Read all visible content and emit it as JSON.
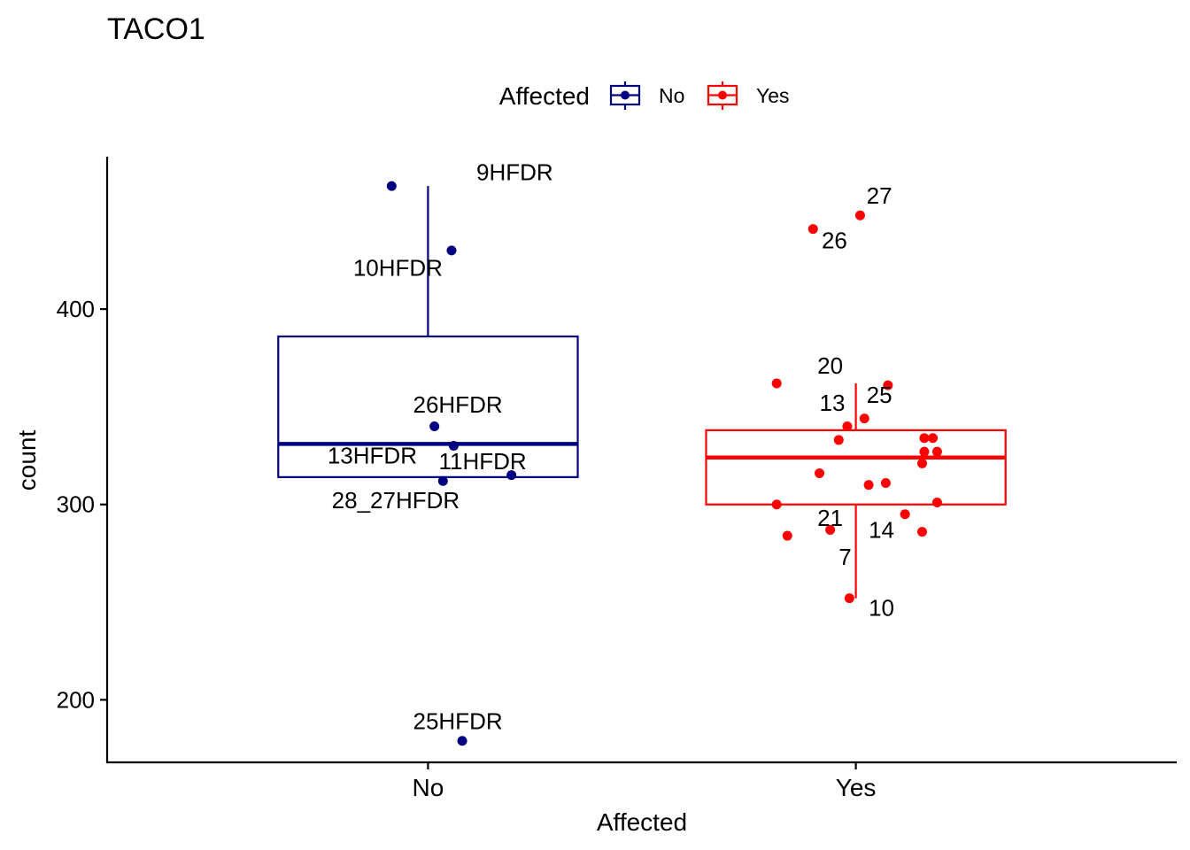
{
  "chart_data": {
    "type": "boxplot",
    "title": "TACO1",
    "xlabel": "Affected",
    "ylabel": "count",
    "ylim": [
      168,
      478
    ],
    "yticks": [
      200,
      300,
      400
    ],
    "categories": [
      "No",
      "Yes"
    ],
    "legend": {
      "title": "Affected",
      "position": "top",
      "entries": [
        {
          "label": "No",
          "color": "#000080"
        },
        {
          "label": "Yes",
          "color": "#FF0000"
        }
      ]
    },
    "boxes": [
      {
        "category": "No",
        "color": "#000080",
        "q1": 314,
        "median": 331,
        "q3": 386,
        "whisker_low": 314,
        "whisker_high": 463
      },
      {
        "category": "Yes",
        "color": "#FF0000",
        "q1": 300,
        "median": 324,
        "q3": 338,
        "whisker_low": 252,
        "whisker_high": 362
      }
    ],
    "points": [
      {
        "category": "No",
        "jitter": -0.085,
        "y": 463
      },
      {
        "category": "No",
        "jitter": 0.055,
        "y": 430
      },
      {
        "category": "No",
        "jitter": 0.015,
        "y": 340
      },
      {
        "category": "No",
        "jitter": 0.06,
        "y": 330
      },
      {
        "category": "No",
        "jitter": 0.035,
        "y": 312
      },
      {
        "category": "No",
        "jitter": 0.195,
        "y": 315
      },
      {
        "category": "No",
        "jitter": 0.08,
        "y": 179
      },
      {
        "category": "Yes",
        "jitter": -0.185,
        "y": 362
      },
      {
        "category": "Yes",
        "jitter": 0.075,
        "y": 361
      },
      {
        "category": "Yes",
        "jitter": 0.02,
        "y": 344
      },
      {
        "category": "Yes",
        "jitter": -0.02,
        "y": 340
      },
      {
        "category": "Yes",
        "jitter": -0.04,
        "y": 333
      },
      {
        "category": "Yes",
        "jitter": 0.16,
        "y": 334
      },
      {
        "category": "Yes",
        "jitter": 0.18,
        "y": 334
      },
      {
        "category": "Yes",
        "jitter": 0.16,
        "y": 327
      },
      {
        "category": "Yes",
        "jitter": 0.19,
        "y": 327
      },
      {
        "category": "Yes",
        "jitter": 0.155,
        "y": 321
      },
      {
        "category": "Yes",
        "jitter": -0.085,
        "y": 316
      },
      {
        "category": "Yes",
        "jitter": 0.03,
        "y": 310
      },
      {
        "category": "Yes",
        "jitter": 0.07,
        "y": 311
      },
      {
        "category": "Yes",
        "jitter": -0.185,
        "y": 300
      },
      {
        "category": "Yes",
        "jitter": 0.19,
        "y": 301
      },
      {
        "category": "Yes",
        "jitter": 0.115,
        "y": 295
      },
      {
        "category": "Yes",
        "jitter": -0.06,
        "y": 287
      },
      {
        "category": "Yes",
        "jitter": -0.16,
        "y": 284
      },
      {
        "category": "Yes",
        "jitter": 0.155,
        "y": 286
      },
      {
        "category": "Yes",
        "jitter": -0.015,
        "y": 252
      },
      {
        "category": "Yes",
        "jitter": -0.1,
        "y": 441
      },
      {
        "category": "Yes",
        "jitter": 0.01,
        "y": 448
      }
    ],
    "point_labels": [
      {
        "text": "9HFDR",
        "category": "No",
        "offset": 0.113,
        "y": 466,
        "anchor": "start"
      },
      {
        "text": "10HFDR",
        "category": "No",
        "offset": -0.175,
        "y": 417,
        "anchor": "start"
      },
      {
        "text": "26HFDR",
        "category": "No",
        "offset": -0.035,
        "y": 347,
        "anchor": "start"
      },
      {
        "text": "13HFDR",
        "category": "No",
        "offset": -0.235,
        "y": 321,
        "anchor": "start"
      },
      {
        "text": "11HFDR",
        "category": "No",
        "offset": 0.025,
        "y": 318,
        "anchor": "start"
      },
      {
        "text": "28_27HFDR",
        "category": "No",
        "offset": -0.225,
        "y": 298,
        "anchor": "start"
      },
      {
        "text": "25HFDR",
        "category": "No",
        "offset": -0.035,
        "y": 185,
        "anchor": "start"
      },
      {
        "text": "27",
        "category": "Yes",
        "offset": 0.025,
        "y": 454,
        "anchor": "start"
      },
      {
        "text": "26",
        "category": "Yes",
        "offset": -0.08,
        "y": 431,
        "anchor": "start"
      },
      {
        "text": "20",
        "category": "Yes",
        "offset": -0.09,
        "y": 367,
        "anchor": "start"
      },
      {
        "text": "13",
        "category": "Yes",
        "offset": -0.085,
        "y": 348,
        "anchor": "start"
      },
      {
        "text": "25",
        "category": "Yes",
        "offset": 0.025,
        "y": 352,
        "anchor": "start"
      },
      {
        "text": "21",
        "category": "Yes",
        "offset": -0.09,
        "y": 289,
        "anchor": "start"
      },
      {
        "text": "14",
        "category": "Yes",
        "offset": 0.03,
        "y": 283,
        "anchor": "start"
      },
      {
        "text": "7",
        "category": "Yes",
        "offset": -0.04,
        "y": 269,
        "anchor": "start"
      },
      {
        "text": "10",
        "category": "Yes",
        "offset": 0.03,
        "y": 243,
        "anchor": "start"
      }
    ]
  }
}
